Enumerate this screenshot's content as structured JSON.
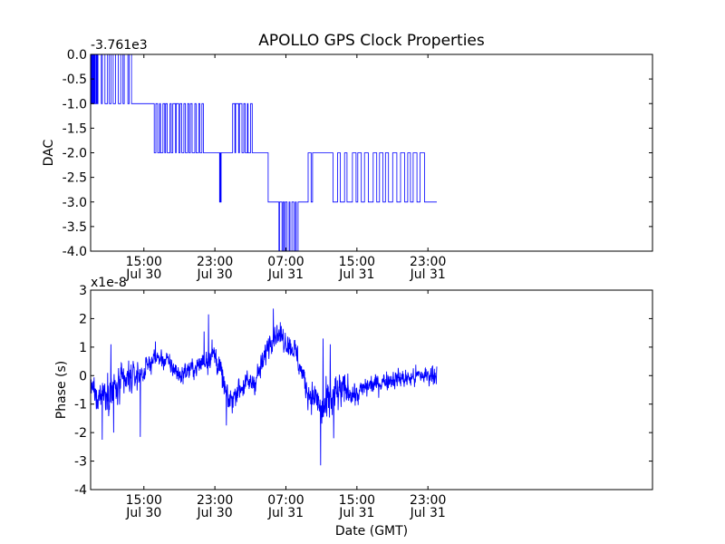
{
  "title": "APOLLO GPS Clock Properties",
  "colors": {
    "line": "#0000ff",
    "axes": "#000000",
    "background": "#ffffff"
  },
  "chart_data": [
    {
      "type": "line",
      "ylabel": "DAC",
      "xlabel": "",
      "offset_label": "-3.761e3",
      "x_unit": "hours since Jul 30 09:00 GMT",
      "xlim": [
        0,
        63.3
      ],
      "ylim": [
        -4.0,
        0.0
      ],
      "x_ticks": [
        {
          "x": 6,
          "time": "15:00",
          "date": "Jul 30"
        },
        {
          "x": 14,
          "time": "23:00",
          "date": "Jul 30"
        },
        {
          "x": 22,
          "time": "07:00",
          "date": "Jul 31"
        },
        {
          "x": 30,
          "time": "15:00",
          "date": "Jul 31"
        },
        {
          "x": 38,
          "time": "23:00",
          "date": "Jul 31"
        }
      ],
      "y_ticks": [
        {
          "v": 0.0,
          "label": "0.0"
        },
        {
          "v": -0.5,
          "label": "-0.5"
        },
        {
          "v": -1.0,
          "label": "-1.0"
        },
        {
          "v": -1.5,
          "label": "-1.5"
        },
        {
          "v": -2.0,
          "label": "-2.0"
        },
        {
          "v": -2.5,
          "label": "-2.5"
        },
        {
          "v": -3.0,
          "label": "-3.0"
        },
        {
          "v": -3.5,
          "label": "-3.5"
        },
        {
          "v": -4.0,
          "label": "-4.0"
        }
      ],
      "segments": [
        {
          "from": 0.0,
          "to": 0.9,
          "levels": [
            0,
            -1
          ],
          "toggle_density": 14
        },
        {
          "from": 0.9,
          "to": 4.6,
          "levels": [
            0,
            -1
          ],
          "toggle_density": 4
        },
        {
          "from": 4.6,
          "to": 6.9,
          "levels": [
            -1
          ],
          "toggle_density": 0
        },
        {
          "from": 6.9,
          "to": 12.7,
          "levels": [
            -1,
            -2
          ],
          "toggle_density": 5
        },
        {
          "from": 12.7,
          "to": 14.5,
          "levels": [
            -2
          ],
          "toggle_density": 0
        },
        {
          "from": 14.5,
          "to": 14.7,
          "levels": [
            -2,
            -3
          ],
          "toggle_density": 40
        },
        {
          "from": 14.7,
          "to": 16.0,
          "levels": [
            -2
          ],
          "toggle_density": 0
        },
        {
          "from": 16.0,
          "to": 18.2,
          "levels": [
            -1,
            -2
          ],
          "toggle_density": 5
        },
        {
          "from": 18.2,
          "to": 20.0,
          "levels": [
            -2
          ],
          "toggle_density": 0
        },
        {
          "from": 20.0,
          "to": 21.0,
          "levels": [
            -3
          ],
          "toggle_density": 0
        },
        {
          "from": 21.0,
          "to": 23.5,
          "levels": [
            -3,
            -4
          ],
          "toggle_density": 6
        },
        {
          "from": 23.5,
          "to": 24.5,
          "levels": [
            -3
          ],
          "toggle_density": 0
        },
        {
          "from": 24.5,
          "to": 25.0,
          "levels": [
            -2,
            -3
          ],
          "toggle_density": 4
        },
        {
          "from": 25.0,
          "to": 27.0,
          "levels": [
            -2
          ],
          "toggle_density": 0
        },
        {
          "from": 27.0,
          "to": 38.0,
          "levels": [
            -2,
            -3
          ],
          "toggle_density": 2.5
        },
        {
          "from": 38.0,
          "to": 39.0,
          "levels": [
            -3
          ],
          "toggle_density": 0
        }
      ]
    },
    {
      "type": "line",
      "ylabel": "Phase (s)",
      "xlabel": "Date (GMT)",
      "offset_label": "x1e-8",
      "x_unit": "hours since Jul 30 09:00 GMT",
      "xlim": [
        0,
        63.3
      ],
      "ylim": [
        -4,
        3
      ],
      "x_ticks": [
        {
          "x": 6,
          "time": "15:00",
          "date": "Jul 30"
        },
        {
          "x": 14,
          "time": "23:00",
          "date": "Jul 30"
        },
        {
          "x": 22,
          "time": "07:00",
          "date": "Jul 31"
        },
        {
          "x": 30,
          "time": "15:00",
          "date": "Jul 31"
        },
        {
          "x": 38,
          "time": "23:00",
          "date": "Jul 31"
        }
      ],
      "y_ticks": [
        {
          "v": 3,
          "label": "3"
        },
        {
          "v": 2,
          "label": "2"
        },
        {
          "v": 1,
          "label": "1"
        },
        {
          "v": 0,
          "label": "0"
        },
        {
          "v": -1,
          "label": "-1"
        },
        {
          "v": -2,
          "label": "-2"
        },
        {
          "v": -3,
          "label": "-3"
        },
        {
          "v": -4,
          "label": "-4"
        }
      ],
      "trend": {
        "x": [
          0,
          0.8,
          1.5,
          2.5,
          3.0,
          4.0,
          5.0,
          6.0,
          6.5,
          7.2,
          8.0,
          9.0,
          10.0,
          11.0,
          12.0,
          13.0,
          13.5,
          14.0,
          14.5,
          15.0,
          15.5,
          16.0,
          16.5,
          17.5,
          18.5,
          19.5,
          20.0,
          20.5,
          21.0,
          22.0,
          23.0,
          23.5,
          24.5,
          25.5,
          26.0,
          27.0,
          28.0,
          29.0,
          30.0,
          31.0,
          32.0,
          33.0,
          34.0,
          35.0,
          36.0,
          37.0,
          38.0,
          39.0
        ],
        "y": [
          -0.4,
          -0.7,
          -0.6,
          -0.4,
          -0.5,
          -0.2,
          0.0,
          0.1,
          0.4,
          0.6,
          0.6,
          0.4,
          0.0,
          0.2,
          0.3,
          0.6,
          0.8,
          0.7,
          0.3,
          -0.3,
          -0.9,
          -0.8,
          -0.5,
          -0.3,
          -0.2,
          0.5,
          1.1,
          1.4,
          1.5,
          1.2,
          0.9,
          0.4,
          -0.6,
          -0.8,
          -1.3,
          -0.9,
          -0.6,
          -0.5,
          -0.7,
          -0.4,
          -0.3,
          -0.2,
          -0.1,
          -0.1,
          -0.1,
          0.0,
          0.0,
          0.1
        ]
      },
      "noise": {
        "x": [
          0,
          2,
          3,
          5,
          6,
          12,
          13,
          15,
          20,
          22,
          25,
          26,
          27,
          28,
          29,
          30,
          32,
          39
        ],
        "amp": [
          0.35,
          0.45,
          0.5,
          0.35,
          0.25,
          0.25,
          0.4,
          0.3,
          0.3,
          0.3,
          0.35,
          0.5,
          0.6,
          0.5,
          0.35,
          0.3,
          0.25,
          0.25
        ]
      },
      "spikes": [
        {
          "x": 1.3,
          "y": -2.25
        },
        {
          "x": 2.3,
          "y": 1.1
        },
        {
          "x": 2.6,
          "y": -2.0
        },
        {
          "x": 5.6,
          "y": -2.15
        },
        {
          "x": 7.3,
          "y": 1.2
        },
        {
          "x": 12.8,
          "y": 1.55
        },
        {
          "x": 13.3,
          "y": 2.15
        },
        {
          "x": 15.3,
          "y": -1.75
        },
        {
          "x": 20.6,
          "y": 2.35
        },
        {
          "x": 25.9,
          "y": -3.15
        },
        {
          "x": 26.2,
          "y": 1.3
        },
        {
          "x": 27.0,
          "y": 1.1
        },
        {
          "x": 27.4,
          "y": -2.2
        }
      ]
    }
  ]
}
